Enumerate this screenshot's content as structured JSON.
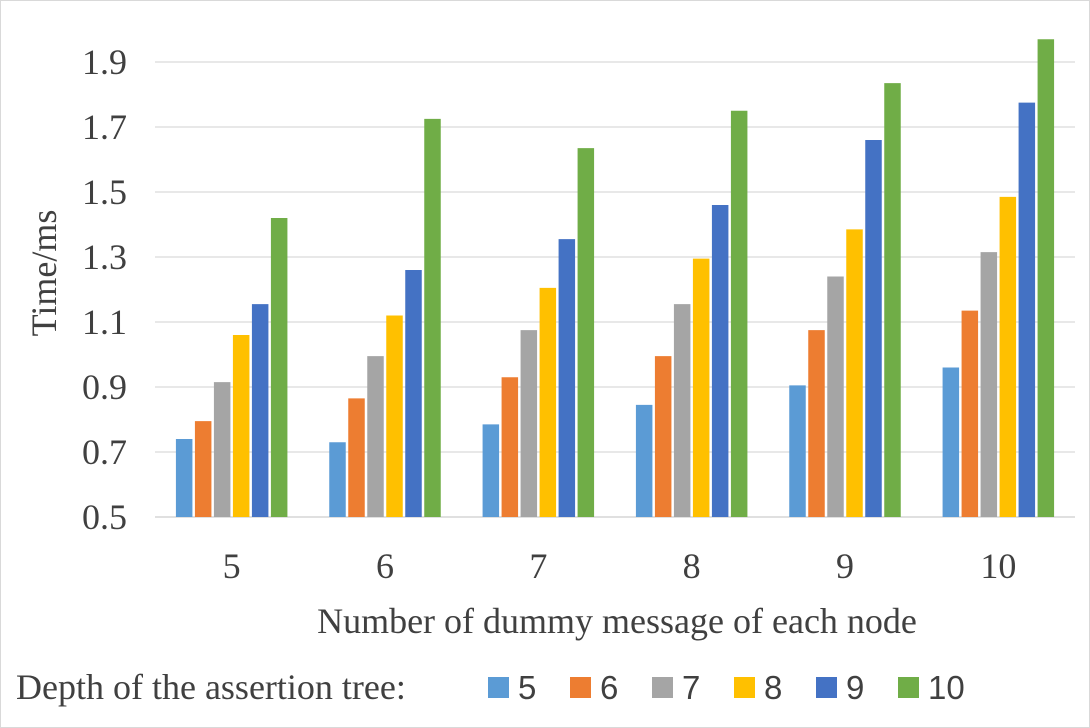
{
  "chart_data": {
    "type": "bar",
    "title": "",
    "xlabel": "Number of dummy message of each node",
    "ylabel": "Time/ms",
    "categories": [
      "5",
      "6",
      "7",
      "8",
      "9",
      "10"
    ],
    "ylim": [
      0.5,
      2.0
    ],
    "yticks": [
      "0.5",
      "0.7",
      "0.9",
      "1.1",
      "1.3",
      "1.5",
      "1.7",
      "1.9"
    ],
    "grid": true,
    "legend": {
      "title": "Depth of the assertion tree:",
      "placement": "bottom"
    },
    "series": [
      {
        "name": "5",
        "color": "#5B9BD5",
        "values": [
          0.74,
          0.73,
          0.785,
          0.845,
          0.905,
          0.96
        ]
      },
      {
        "name": "6",
        "color": "#ED7D31",
        "values": [
          0.795,
          0.865,
          0.93,
          0.995,
          1.075,
          1.135
        ]
      },
      {
        "name": "7",
        "color": "#A5A5A5",
        "values": [
          0.915,
          0.995,
          1.075,
          1.155,
          1.24,
          1.315
        ]
      },
      {
        "name": "8",
        "color": "#FFC000",
        "values": [
          1.06,
          1.12,
          1.205,
          1.295,
          1.385,
          1.485
        ]
      },
      {
        "name": "9",
        "color": "#4472C4",
        "values": [
          1.155,
          1.26,
          1.355,
          1.46,
          1.66,
          1.775
        ]
      },
      {
        "name": "10",
        "color": "#70AD47",
        "values": [
          1.42,
          1.725,
          1.635,
          1.75,
          1.835,
          1.97
        ]
      }
    ]
  }
}
